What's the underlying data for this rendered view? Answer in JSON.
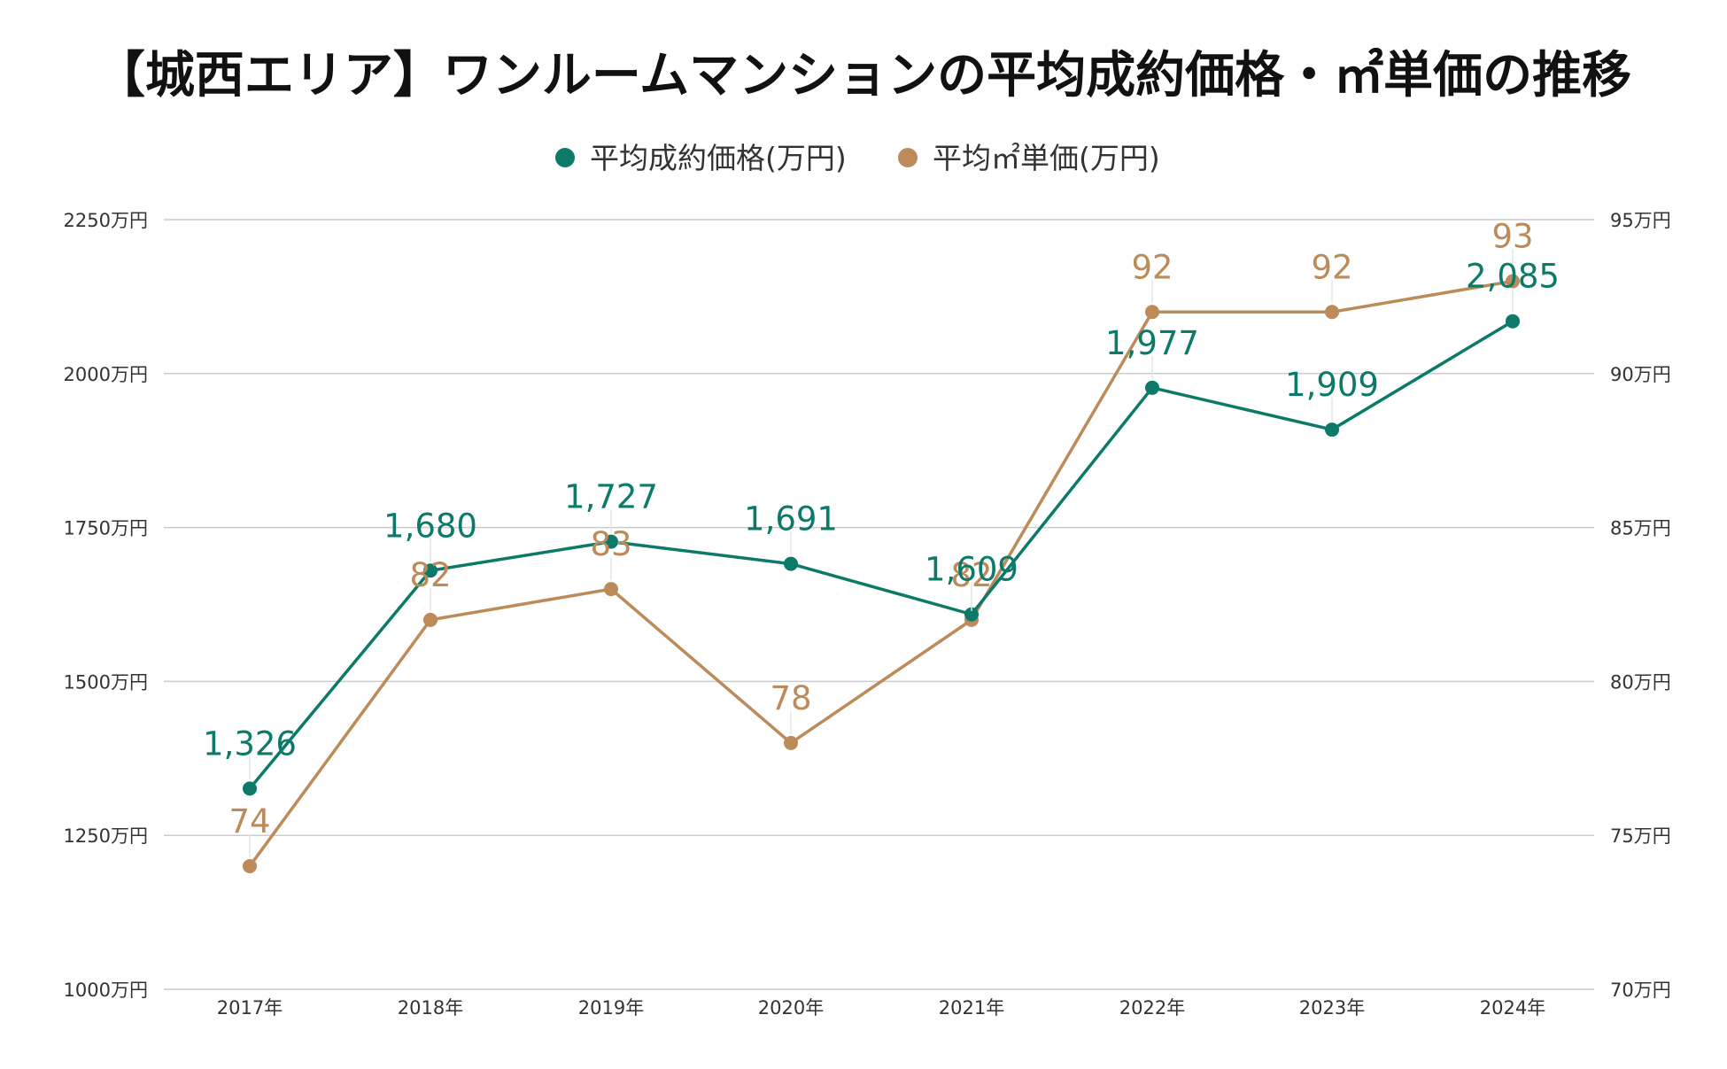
{
  "colors": {
    "price": "#0b7a68",
    "unit": "#bd8a5a",
    "grid": "#cccccc",
    "text": "#333333",
    "title": "#111111"
  },
  "chart_data": {
    "type": "line",
    "title": "【城西エリア】ワンルームマンションの平均成約価格・㎡単価の推移",
    "categories": [
      "2017年",
      "2018年",
      "2019年",
      "2020年",
      "2021年",
      "2022年",
      "2023年",
      "2024年"
    ],
    "series": [
      {
        "name": "平均成約価格(万円)",
        "axis": "left",
        "color": "#0b7a68",
        "values": [
          1326,
          1680,
          1727,
          1691,
          1609,
          1977,
          1909,
          2085
        ],
        "labels": [
          "1,326",
          "1,680",
          "1,727",
          "1,691",
          "1,609",
          "1,977",
          "1,909",
          "2,085"
        ]
      },
      {
        "name": "平均㎡単価(万円)",
        "axis": "right",
        "color": "#bd8a5a",
        "values": [
          74,
          82,
          83,
          78,
          82,
          92,
          92,
          93
        ],
        "labels": [
          "74",
          "82",
          "83",
          "78",
          "82",
          "92",
          "92",
          "93"
        ]
      }
    ],
    "left_axis": {
      "min": 1000,
      "max": 2250,
      "ticks": [
        "1000万円",
        "1250万円",
        "1500万円",
        "1750万円",
        "2000万円",
        "2250万円"
      ]
    },
    "right_axis": {
      "min": 70,
      "max": 95,
      "ticks": [
        "70万円",
        "75万円",
        "80万円",
        "85万円",
        "90万円",
        "95万円"
      ]
    },
    "legend": "top-center",
    "grid": true
  }
}
